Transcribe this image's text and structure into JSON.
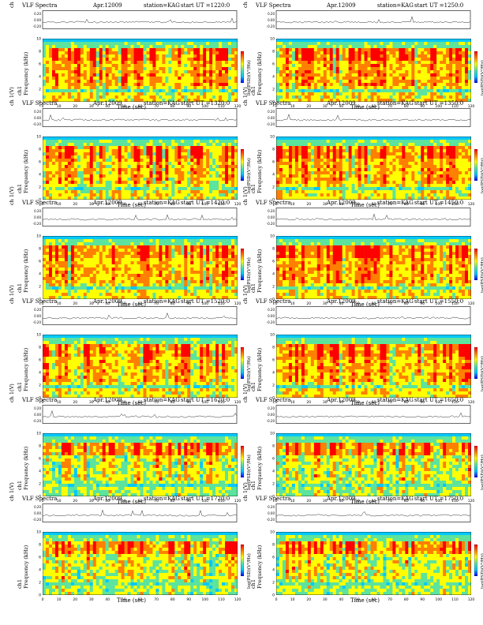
{
  "colors": {
    "axis": "#000000",
    "trace": "#333333",
    "heat_scale": [
      "#0000ff",
      "#00c8ff",
      "#5ce39d",
      "#ffff00",
      "#ff8000",
      "#ff0000"
    ]
  },
  "page": {
    "panel_title": "VLF Spectra",
    "date": "Apr.12009",
    "station": "station=KAG",
    "start_ut_prefix": "start  UT  ="
  },
  "labels": {
    "waveform_axis": "ch 1(V)",
    "channel": "ch1",
    "freq_axis": "Frequency  (kHz)",
    "time_axis": "Time  (sec)",
    "colorbar": "log(PSD)(V²/Hz)"
  },
  "chart_data": {
    "type": "heatmap",
    "description_series": "VLF spectrograms, 12 panels",
    "panels": [
      {
        "start_ut": "1220:0",
        "x_ticks": [
          0,
          10,
          20,
          30,
          40,
          50,
          60,
          70,
          80,
          90,
          100,
          110,
          120
        ],
        "xlim": [
          0,
          120
        ]
      },
      {
        "start_ut": "1250:0",
        "x_ticks": [
          0,
          10,
          20,
          30,
          40,
          50,
          60,
          70,
          80,
          90,
          100,
          110,
          120
        ],
        "xlim": [
          0,
          120
        ]
      },
      {
        "start_ut": "1320:0",
        "x_ticks": [
          0,
          10,
          20,
          30,
          40,
          50,
          60,
          70,
          80,
          90,
          100,
          110,
          120
        ],
        "xlim": [
          0,
          120
        ]
      },
      {
        "start_ut": "1350:0",
        "x_ticks": [
          0,
          10,
          20,
          30,
          40,
          50,
          60,
          70,
          80,
          90,
          100,
          110,
          120
        ],
        "xlim": [
          0,
          120
        ]
      },
      {
        "start_ut": "1420:0",
        "x_ticks": [
          0,
          10,
          20,
          30,
          40,
          50,
          60,
          70,
          80,
          90,
          100,
          110,
          120
        ],
        "xlim": [
          0,
          120
        ]
      },
      {
        "start_ut": "1450:0",
        "x_ticks": [
          0,
          10,
          20,
          30,
          40,
          50,
          60,
          70,
          80,
          90,
          100,
          110,
          120
        ],
        "xlim": [
          0,
          120
        ]
      },
      {
        "start_ut": "1520:0",
        "x_ticks": [
          0,
          10,
          20,
          30,
          40,
          50,
          60,
          70,
          80,
          90,
          100,
          110,
          120
        ],
        "xlim": [
          0,
          120
        ]
      },
      {
        "start_ut": "1550:0",
        "x_ticks": [
          0,
          10,
          20,
          30,
          40,
          50,
          60,
          70,
          80,
          90,
          100,
          110,
          120
        ],
        "xlim": [
          0,
          120
        ]
      },
      {
        "start_ut": "1620:0",
        "x_ticks": [
          0,
          10,
          20,
          30,
          40,
          50,
          60,
          70,
          80,
          90,
          100,
          110,
          120
        ],
        "xlim": [
          0,
          120
        ]
      },
      {
        "start_ut": "1650:0",
        "x_ticks": [
          0,
          10,
          20,
          30,
          40,
          50,
          60,
          70,
          80,
          90,
          100,
          110,
          120
        ],
        "xlim": [
          0,
          120
        ]
      },
      {
        "start_ut": "1720:0",
        "x_ticks": [
          0,
          10,
          20,
          30,
          40,
          50,
          60,
          70,
          80,
          90,
          100,
          110,
          120
        ],
        "xlim": [
          0,
          120
        ]
      },
      {
        "start_ut": "1750:0",
        "x_ticks": [
          0,
          10,
          20,
          30,
          40,
          50,
          60,
          70,
          80,
          90,
          100,
          110,
          120
        ],
        "xlim": [
          0,
          120
        ]
      }
    ],
    "freq_ticks": [
      0,
      2,
      4,
      6,
      8,
      10
    ],
    "freq_ylim": [
      0,
      10
    ],
    "waveform_ticks": [
      "0.20",
      "0.00",
      "-0.20"
    ],
    "waveform_ylim": [
      -0.2,
      0.2
    ],
    "grid": false,
    "legend": "colorbar right"
  }
}
